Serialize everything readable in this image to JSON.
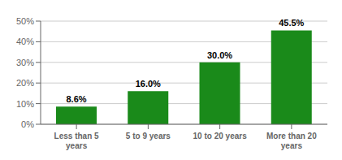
{
  "chart_data": {
    "type": "bar",
    "categories": [
      "Less than 5\nyears",
      "5 to 9 years",
      "10 to 20 years",
      "More than 20\nyears"
    ],
    "values": [
      8.6,
      16.0,
      30.0,
      45.5
    ],
    "value_labels": [
      "8.6%",
      "16.0%",
      "30.0%",
      "45.5%"
    ],
    "data_labels": true,
    "color": "#1a8a1a",
    "ylim": [
      0,
      50
    ],
    "yticks": [
      {
        "value": 0,
        "label": "0%"
      },
      {
        "value": 10,
        "label": "10%"
      },
      {
        "value": 20,
        "label": "20%"
      },
      {
        "value": 30,
        "label": "30%"
      },
      {
        "value": 40,
        "label": "40%"
      },
      {
        "value": 50,
        "label": "50%"
      }
    ],
    "grid": true
  }
}
